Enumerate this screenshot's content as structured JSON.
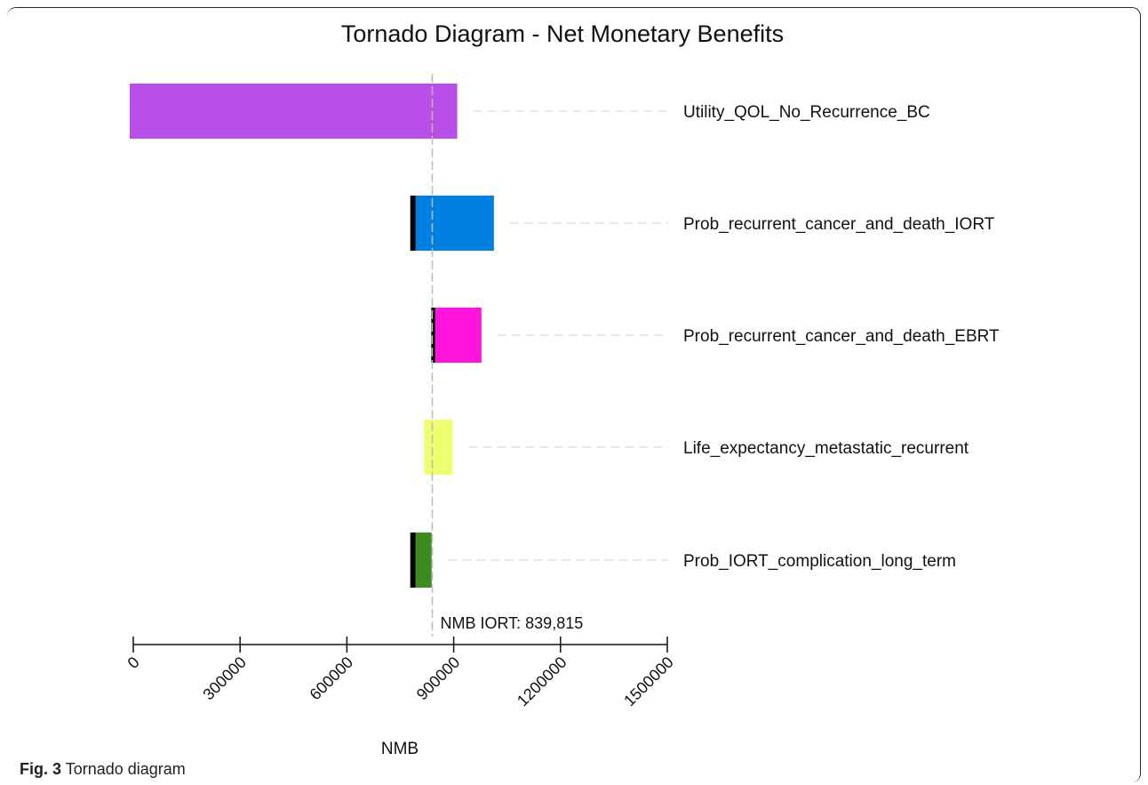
{
  "caption": {
    "fig_label": "Fig. 3",
    "text": "Tornado diagram"
  },
  "chart_data": {
    "type": "bar",
    "orientation": "horizontal",
    "title": "Tornado Diagram - Net Monetary Benefits",
    "xlabel": "NMB",
    "ylabel": "",
    "xlim": [
      0,
      1500000
    ],
    "x_ticks": [
      "0",
      "300000",
      "600000",
      "900000",
      "1200000",
      "1500000"
    ],
    "reference": {
      "value": 839815,
      "label": "NMB IORT: 839,815"
    },
    "grid": false,
    "legend": "none",
    "categories": [
      "Utility_QOL_No_Recurrence_BC",
      "Prob_recurrent_cancer_and_death_IORT",
      "Prob_recurrent_cancer_and_death_EBRT",
      "Life_expectancy_metastatic_recurrent",
      "Prob_IORT_complication_long_term"
    ],
    "bars": [
      {
        "low": -10000,
        "high": 910000,
        "black_low": null,
        "black_high": null,
        "color": "#b84fe8"
      },
      {
        "low": 793000,
        "high": 1013000,
        "black_low": 778000,
        "black_high": 793000,
        "color": "#0080e0"
      },
      {
        "low": 848000,
        "high": 978000,
        "black_low": 837000,
        "black_high": 848000,
        "color": "#ff14dc"
      },
      {
        "low": 817000,
        "high": 897000,
        "black_low": null,
        "black_high": null,
        "color": "#eeff70"
      },
      {
        "low": 793000,
        "high": 838000,
        "black_low": 778000,
        "black_high": 793000,
        "color": "#3d8a1e"
      }
    ]
  }
}
